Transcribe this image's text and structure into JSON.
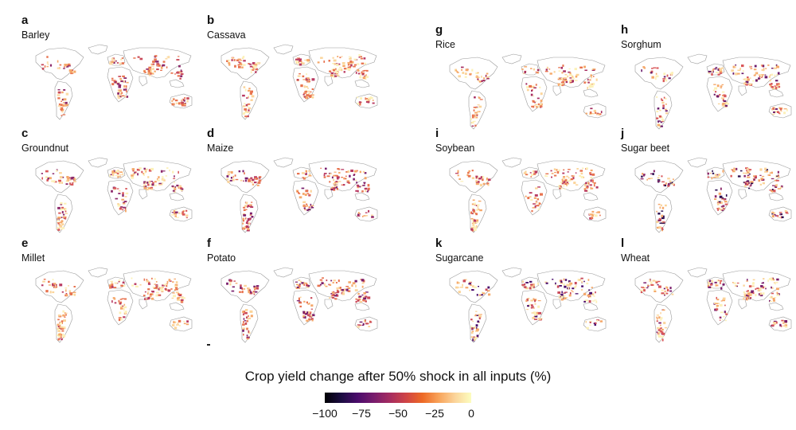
{
  "panels": [
    {
      "letter": "a",
      "crop": "Barley",
      "colors": [
        "#fcdca8",
        "#f5a86a",
        "#e8734f",
        "#c94a5a",
        "#8d2a6b"
      ]
    },
    {
      "letter": "b",
      "crop": "Cassava",
      "colors": [
        "#fcf1b8",
        "#fbd49a",
        "#f5a86a",
        "#e8734f",
        "#b93a62"
      ]
    },
    {
      "letter": "c",
      "crop": "Groundnut",
      "colors": [
        "#fcf1b8",
        "#fbd49a",
        "#f5a86a",
        "#d9575a",
        "#8d2a6b"
      ]
    },
    {
      "letter": "d",
      "crop": "Maize",
      "colors": [
        "#fbd49a",
        "#f5a86a",
        "#e8734f",
        "#b93a62",
        "#7a1f6d"
      ]
    },
    {
      "letter": "e",
      "crop": "Millet",
      "colors": [
        "#fcf1b8",
        "#fbd49a",
        "#f5a86a",
        "#e8734f",
        "#b93a62"
      ]
    },
    {
      "letter": "f",
      "crop": "Potato",
      "colors": [
        "#fbd49a",
        "#f5a86a",
        "#e8734f",
        "#c94a5a",
        "#7a1f6d"
      ]
    },
    {
      "letter": "g",
      "crop": "Rice",
      "colors": [
        "#fcf1b8",
        "#fbd49a",
        "#f5a86a",
        "#e8734f",
        "#a52c60"
      ]
    },
    {
      "letter": "h",
      "crop": "Sorghum",
      "colors": [
        "#fcf1b8",
        "#fbd49a",
        "#f5a86a",
        "#d9575a",
        "#6a1b6b"
      ]
    },
    {
      "letter": "i",
      "crop": "Soybean",
      "colors": [
        "#fcf1b8",
        "#fbd49a",
        "#f5a86a",
        "#e8734f",
        "#b93a62"
      ]
    },
    {
      "letter": "j",
      "crop": "Sugar beet",
      "colors": [
        "#fbd49a",
        "#f5a86a",
        "#d9575a",
        "#8d2a6b",
        "#2d0f50"
      ]
    },
    {
      "letter": "k",
      "crop": "Sugarcane",
      "colors": [
        "#fcf1b8",
        "#fbd49a",
        "#f5a86a",
        "#c94a5a",
        "#4a0c6b"
      ]
    },
    {
      "letter": "l",
      "crop": "Wheat",
      "colors": [
        "#fcf1b8",
        "#fbd49a",
        "#f5a86a",
        "#d9575a",
        "#7a1f6d"
      ]
    }
  ],
  "legend": {
    "title": "Crop yield change after 50% shock in all inputs (%)",
    "ticks": [
      {
        "label": "−100",
        "value": -100
      },
      {
        "label": "−75",
        "value": -75
      },
      {
        "label": "−50",
        "value": -50
      },
      {
        "label": "−25",
        "value": -25
      },
      {
        "label": "0",
        "value": 0
      }
    ],
    "range": [
      -100,
      0
    ]
  }
}
